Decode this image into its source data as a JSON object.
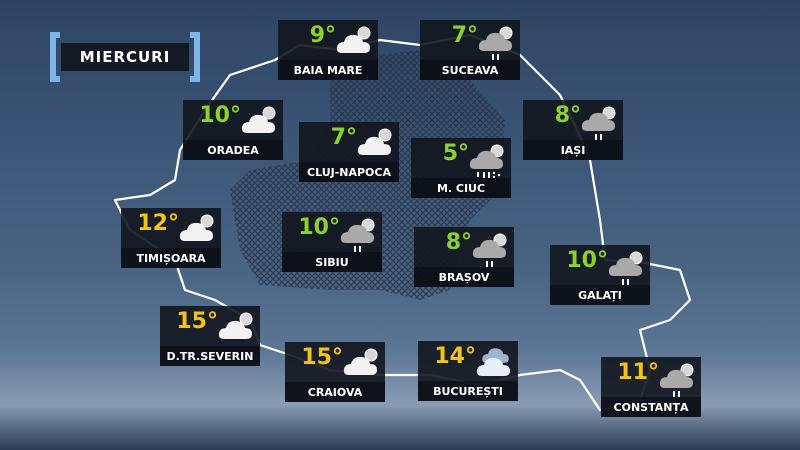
{
  "day_label": "MIERCURI",
  "colors": {
    "cool_temp": "#8dd22c",
    "warm_temp": "#f4c318",
    "bracket": "#7cb6e6",
    "border_line": "#ffffff"
  },
  "cities": [
    {
      "name": "BAIA MARE",
      "temp": "9°",
      "icon": "partly-cloudy",
      "tone": "cool"
    },
    {
      "name": "SUCEAVA",
      "temp": "7°",
      "icon": "rain",
      "tone": "cool"
    },
    {
      "name": "ORADEA",
      "temp": "10°",
      "icon": "partly-cloudy",
      "tone": "cool"
    },
    {
      "name": "CLUJ-NAPOCA",
      "temp": "7°",
      "icon": "partly-cloudy",
      "tone": "cool"
    },
    {
      "name": "IAȘI",
      "temp": "8°",
      "icon": "rain",
      "tone": "cool"
    },
    {
      "name": "M. CIUC",
      "temp": "5°",
      "icon": "rain-snow",
      "tone": "cool"
    },
    {
      "name": "TIMIȘOARA",
      "temp": "12°",
      "icon": "partly-cloudy",
      "tone": "warm"
    },
    {
      "name": "SIBIU",
      "temp": "10°",
      "icon": "rain",
      "tone": "cool"
    },
    {
      "name": "BRAȘOV",
      "temp": "8°",
      "icon": "rain",
      "tone": "cool"
    },
    {
      "name": "GALAȚI",
      "temp": "10°",
      "icon": "rain",
      "tone": "cool"
    },
    {
      "name": "D.TR.SEVERIN",
      "temp": "15°",
      "icon": "partly-cloudy",
      "tone": "warm"
    },
    {
      "name": "CRAIOVA",
      "temp": "15°",
      "icon": "partly-cloudy",
      "tone": "warm"
    },
    {
      "name": "BUCUREȘTI",
      "temp": "14°",
      "icon": "cloudy",
      "tone": "warm"
    },
    {
      "name": "CONSTANȚA",
      "temp": "11°",
      "icon": "rain",
      "tone": "warm"
    }
  ]
}
